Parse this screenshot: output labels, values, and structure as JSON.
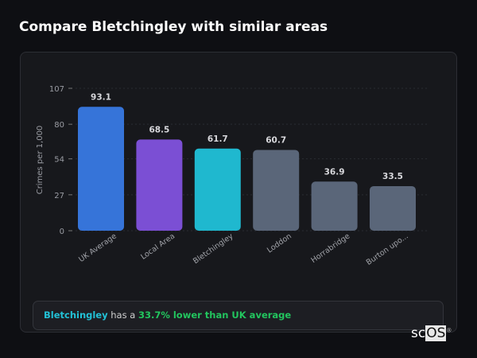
{
  "title": "Compare Bletchingley with similar areas",
  "chart_data": {
    "type": "bar",
    "categories": [
      "UK Average",
      "Local Area",
      "Bletchingley",
      "Loddon",
      "Horrabridge",
      "Burton upo..."
    ],
    "values": [
      93.1,
      68.5,
      61.7,
      60.7,
      36.9,
      33.5
    ],
    "value_labels": [
      "93.1",
      "68.5",
      "61.7",
      "60.7",
      "36.9",
      "33.5"
    ],
    "colors": [
      "#3674d9",
      "#7b4fd4",
      "#1fb8cf",
      "#5a6679",
      "#5a6679",
      "#5a6679"
    ],
    "ylabel": "Crimes per 1,000",
    "xlabel": "",
    "ylim": [
      0,
      107
    ],
    "yticks": [
      0,
      27,
      54,
      80,
      107
    ],
    "grid": true,
    "legend": "none"
  },
  "summary": {
    "place": "Bletchingley",
    "middle": " has a ",
    "comparison": "33.7% lower than UK average"
  },
  "logo": {
    "text_a": "sc",
    "text_b": "OS",
    "mark": "®"
  }
}
